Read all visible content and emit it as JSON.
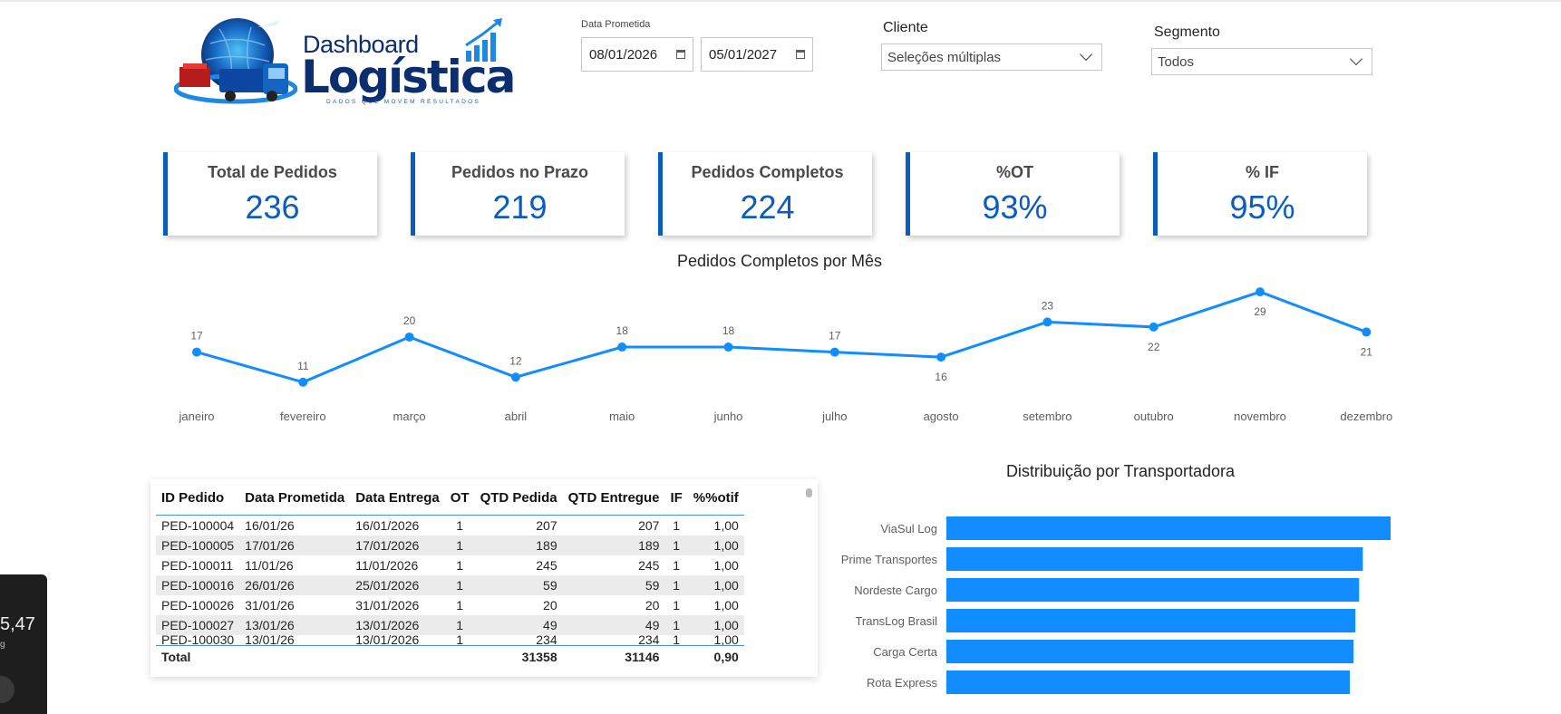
{
  "logo": {
    "line1": "Dashboard",
    "line2": "Logística",
    "tagline": "DADOS QUE MOVEM RESULTADOS"
  },
  "filters": {
    "date_label": "Data Prometida",
    "date_start": "08/01/2026",
    "date_end": "05/01/2027",
    "cliente_label": "Cliente",
    "cliente_value": "Seleções múltiplas",
    "segmento_label": "Segmento",
    "segmento_value": "Todos"
  },
  "kpis": [
    {
      "label": "Total de Pedidos",
      "value": "236"
    },
    {
      "label": "Pedidos no Prazo",
      "value": "219"
    },
    {
      "label": "Pedidos Completos",
      "value": "224"
    },
    {
      "label": "%OT",
      "value": "93%"
    },
    {
      "label": "% IF",
      "value": "95%"
    }
  ],
  "colors": {
    "accent": "#0b5cc0",
    "series": "#118dff"
  },
  "chart_data": [
    {
      "type": "line",
      "title": "Pedidos Completos por Mês",
      "categories": [
        "janeiro",
        "fevereiro",
        "março",
        "abril",
        "maio",
        "junho",
        "julho",
        "agosto",
        "setembro",
        "outubro",
        "novembro",
        "dezembro"
      ],
      "values": [
        17,
        11,
        20,
        12,
        18,
        18,
        17,
        16,
        23,
        22,
        29,
        21
      ],
      "label_position": [
        "above",
        "above",
        "above",
        "above",
        "above",
        "above",
        "above",
        "below",
        "above",
        "below",
        "below",
        "below"
      ],
      "ylim": [
        0,
        30
      ]
    },
    {
      "type": "bar",
      "orientation": "horizontal",
      "title": "Distribuição por Transportadora",
      "categories": [
        "ViaSul Log",
        "Prime Transportes",
        "Nordeste Cargo",
        "TransLog Brasil",
        "Carga Certa",
        "Rota Express"
      ],
      "values": [
        48,
        45,
        44.6,
        44.2,
        44,
        43.6
      ],
      "xlim": [
        0,
        48
      ]
    }
  ],
  "table": {
    "columns": [
      "ID Pedido",
      "Data Prometida",
      "Data Entrega",
      "OT",
      "QTD Pedida",
      "QTD Entregue",
      "IF",
      "%%otif"
    ],
    "rows": [
      [
        "PED-100004",
        "16/01/26",
        "16/01/2026",
        "1",
        "207",
        "207",
        "1",
        "1,00"
      ],
      [
        "PED-100005",
        "17/01/26",
        "17/01/2026",
        "1",
        "189",
        "189",
        "1",
        "1,00"
      ],
      [
        "PED-100011",
        "11/01/26",
        "11/01/2026",
        "1",
        "245",
        "245",
        "1",
        "1,00"
      ],
      [
        "PED-100016",
        "26/01/26",
        "25/01/2026",
        "1",
        "59",
        "59",
        "1",
        "1,00"
      ],
      [
        "PED-100026",
        "31/01/26",
        "31/01/2026",
        "1",
        "20",
        "20",
        "1",
        "1,00"
      ],
      [
        "PED-100027",
        "13/01/26",
        "13/01/2026",
        "1",
        "49",
        "49",
        "1",
        "1,00"
      ],
      [
        "PED-100030",
        "13/01/26",
        "13/01/2026",
        "1",
        "234",
        "234",
        "1",
        "1,00"
      ]
    ],
    "total": [
      "Total",
      "",
      "",
      "",
      "31358",
      "31146",
      "",
      "0,90"
    ]
  },
  "overlay": {
    "value": "5,47",
    "sub": "g"
  }
}
